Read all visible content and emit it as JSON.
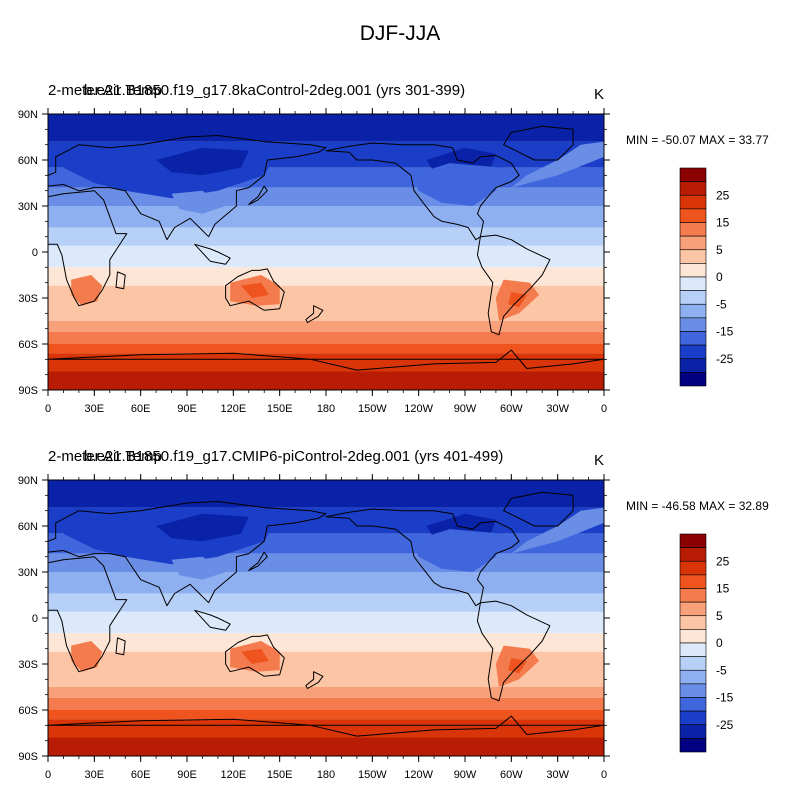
{
  "figure_title": "DJF-JJA",
  "chart_data": [
    {
      "type": "heatmap",
      "title_left_overlap_a": "2-meter Air Temp",
      "title_left_overlap_b": "b.e21.B1850.f19_g17.8kaControl-2deg.001 (yrs 301-399)",
      "units": "K",
      "min_label": "MIN = -50.07 MAX =  33.77",
      "min": -50.07,
      "max": 33.77,
      "x_ticks": [
        "0",
        "30E",
        "60E",
        "90E",
        "120E",
        "150E",
        "180",
        "150W",
        "120W",
        "90W",
        "60W",
        "30W",
        "0"
      ],
      "y_ticks": [
        "90N",
        "60N",
        "30N",
        "0",
        "30S",
        "60S",
        "90S"
      ],
      "colorbar_levels": [
        "25",
        "15",
        "5",
        "0",
        "-5",
        "-15",
        "-25"
      ]
    },
    {
      "type": "heatmap",
      "title_left_overlap_a": "2-meter Air Temp",
      "title_left_overlap_b": "b.e21.B1850.f19_g17.CMIP6-piControl-2deg.001 (yrs 401-499)",
      "units": "K",
      "min_label": "MIN = -46.58 MAX =  32.89",
      "min": -46.58,
      "max": 32.89,
      "x_ticks": [
        "0",
        "30E",
        "60E",
        "90E",
        "120E",
        "150E",
        "180",
        "150W",
        "120W",
        "90W",
        "60W",
        "30W",
        "0"
      ],
      "y_ticks": [
        "90N",
        "60N",
        "30N",
        "0",
        "30S",
        "60S",
        "90S"
      ],
      "colorbar_levels": [
        "25",
        "15",
        "5",
        "0",
        "-5",
        "-15",
        "-25"
      ]
    }
  ],
  "colors": {
    "colorbar_top_to_bottom": [
      "#8b0000",
      "#b81c04",
      "#d93508",
      "#f0541e",
      "#f47b4d",
      "#f8a07a",
      "#fbc5a6",
      "#fde6d6",
      "#dce9fb",
      "#b7d0f7",
      "#8fb0f0",
      "#6a8ee6",
      "#3f66dc",
      "#1b3ec8",
      "#0a22a8",
      "#000080"
    ]
  }
}
